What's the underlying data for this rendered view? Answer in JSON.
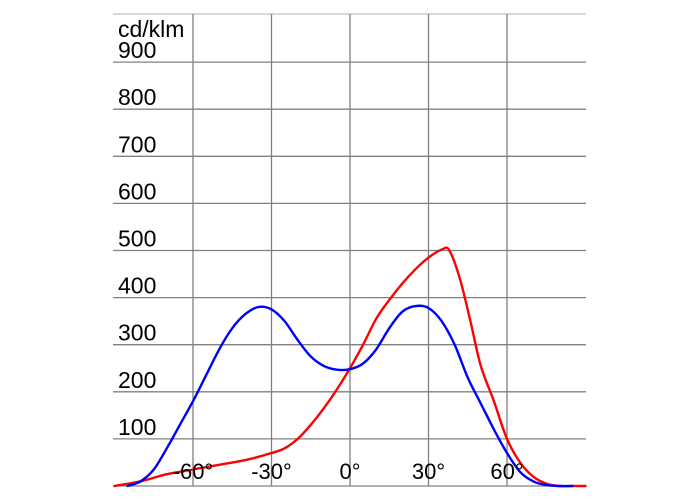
{
  "chart_data": {
    "type": "line",
    "unit_label": "cd/klm",
    "y_ticks": [
      {
        "value": 100,
        "label": "100"
      },
      {
        "value": 200,
        "label": "200"
      },
      {
        "value": 300,
        "label": "300"
      },
      {
        "value": 400,
        "label": "400"
      },
      {
        "value": 500,
        "label": "500"
      },
      {
        "value": 600,
        "label": "600"
      },
      {
        "value": 700,
        "label": "700"
      },
      {
        "value": 800,
        "label": "800"
      },
      {
        "value": 900,
        "label": "900"
      }
    ],
    "x_ticks": [
      {
        "value": -60,
        "label": "-60°"
      },
      {
        "value": -30,
        "label": "-30°"
      },
      {
        "value": 0,
        "label": "0°"
      },
      {
        "value": 30,
        "label": "30°"
      },
      {
        "value": 60,
        "label": "60°"
      }
    ],
    "xlim": [
      -90,
      90
    ],
    "ylim": [
      0,
      1000
    ],
    "grid": true,
    "series": [
      {
        "color": "#ff0000",
        "x": [
          -90,
          -80,
          -70,
          -60,
          -50,
          -40,
          -30,
          -25,
          -20,
          -15,
          -10,
          -5,
          0,
          5,
          10,
          15,
          20,
          25,
          30,
          35,
          38,
          42,
          46,
          50,
          55,
          60,
          65,
          70,
          75,
          80,
          85,
          90
        ],
        "y": [
          0,
          10,
          25,
          35,
          45,
          55,
          70,
          80,
          100,
          130,
          165,
          205,
          250,
          300,
          355,
          395,
          430,
          460,
          485,
          502,
          500,
          440,
          350,
          255,
          180,
          100,
          50,
          20,
          5,
          0,
          0,
          0
        ]
      },
      {
        "color": "#0000ff",
        "x": [
          -85,
          -80,
          -75,
          -70,
          -65,
          -60,
          -55,
          -50,
          -45,
          -40,
          -35,
          -30,
          -25,
          -20,
          -15,
          -10,
          -5,
          0,
          5,
          10,
          15,
          20,
          25,
          30,
          35,
          40,
          45,
          50,
          55,
          60,
          65,
          70,
          75,
          80,
          85
        ],
        "y": [
          0,
          10,
          35,
          80,
          130,
          180,
          235,
          290,
          335,
          365,
          380,
          375,
          350,
          310,
          275,
          255,
          247,
          248,
          260,
          290,
          335,
          370,
          382,
          378,
          350,
          300,
          230,
          175,
          120,
          70,
          30,
          10,
          2,
          0,
          0
        ]
      }
    ]
  }
}
